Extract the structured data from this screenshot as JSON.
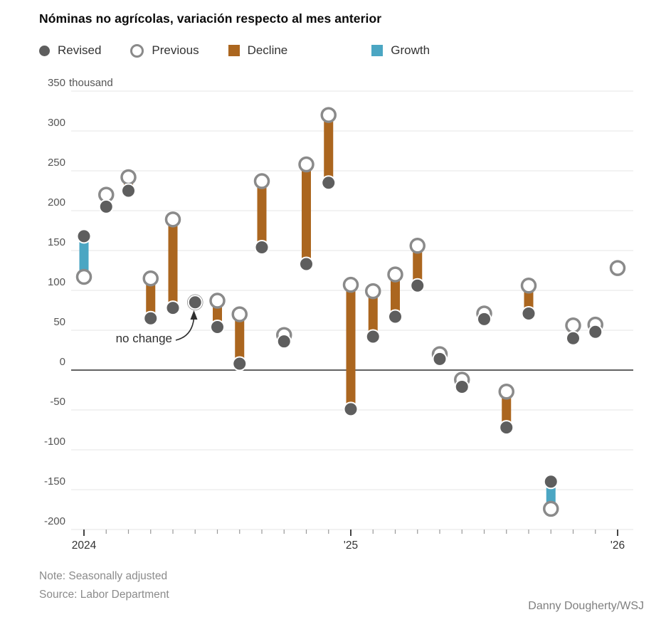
{
  "title": "Nóminas no agrícolas, variación respecto al mes anterior",
  "legend": {
    "revised_label": "Revised",
    "previous_label": "Previous",
    "decline_label": "Decline",
    "growth_label": "Growth"
  },
  "colors": {
    "revised_dot": "#5e5e5e",
    "previous_ring": "#8a8a8a",
    "decline_bar": "#ab661f",
    "growth_bar": "#4ba6c3",
    "gridline": "#e4e4e4",
    "zero_line": "#2e2e2e",
    "axis_label": "#555555",
    "year_label": "#333333",
    "tick_minor": "#999999",
    "tick_major": "#444444"
  },
  "annotation": {
    "text": "no change",
    "month_index": 5
  },
  "notes": {
    "note": "Note: Seasonally adjusted",
    "source": "Source: Labor Department"
  },
  "credit": "Danny Dougherty/WSJ",
  "y_axis": {
    "unit_label": "thousand",
    "ticks": [
      350,
      300,
      250,
      200,
      150,
      100,
      50,
      0,
      -50,
      -100,
      -150,
      -200
    ]
  },
  "x_axis": {
    "year_labels": [
      {
        "label": "2024",
        "month_index": 0
      },
      {
        "label": "'25",
        "month_index": 12
      },
      {
        "label": "'26",
        "month_index": 24
      }
    ]
  },
  "chart_data": {
    "type": "scatter",
    "subtype": "dumbbell-revision",
    "title": "Nóminas no agrícolas, variación respecto al mes anterior",
    "ylabel": "thousand",
    "ylim": [
      -200,
      350
    ],
    "ytick_step": 50,
    "grid": true,
    "legend_position": "top",
    "series_names": [
      "Previous",
      "Revised"
    ],
    "months": [
      {
        "m": "2024-01",
        "previous": 117,
        "revised": 168
      },
      {
        "m": "2024-02",
        "previous": 220,
        "revised": 205
      },
      {
        "m": "2024-03",
        "previous": 242,
        "revised": 225
      },
      {
        "m": "2024-04",
        "previous": 115,
        "revised": 65
      },
      {
        "m": "2024-05",
        "previous": 189,
        "revised": 78
      },
      {
        "m": "2024-06",
        "previous": 85,
        "revised": 85
      },
      {
        "m": "2024-07",
        "previous": 87,
        "revised": 54
      },
      {
        "m": "2024-08",
        "previous": 70,
        "revised": 8
      },
      {
        "m": "2024-09",
        "previous": 237,
        "revised": 154
      },
      {
        "m": "2024-10",
        "previous": 44,
        "revised": 36
      },
      {
        "m": "2024-11",
        "previous": 258,
        "revised": 133
      },
      {
        "m": "2024-12",
        "previous": 320,
        "revised": 235
      },
      {
        "m": "2025-01",
        "previous": 107,
        "revised": -49
      },
      {
        "m": "2025-02",
        "previous": 99,
        "revised": 42
      },
      {
        "m": "2025-03",
        "previous": 120,
        "revised": 67
      },
      {
        "m": "2025-04",
        "previous": 156,
        "revised": 106
      },
      {
        "m": "2025-05",
        "previous": 20,
        "revised": 14
      },
      {
        "m": "2025-06",
        "previous": -12,
        "revised": -21
      },
      {
        "m": "2025-07",
        "previous": 71,
        "revised": 64
      },
      {
        "m": "2025-08",
        "previous": -27,
        "revised": -72
      },
      {
        "m": "2025-09",
        "previous": 106,
        "revised": 71
      },
      {
        "m": "2025-10",
        "previous": -174,
        "revised": -140
      },
      {
        "m": "2025-11",
        "previous": 56,
        "revised": 40
      },
      {
        "m": "2025-12",
        "previous": 57,
        "revised": 48
      },
      {
        "m": "2026-01",
        "previous": 128,
        "revised": null
      }
    ]
  }
}
